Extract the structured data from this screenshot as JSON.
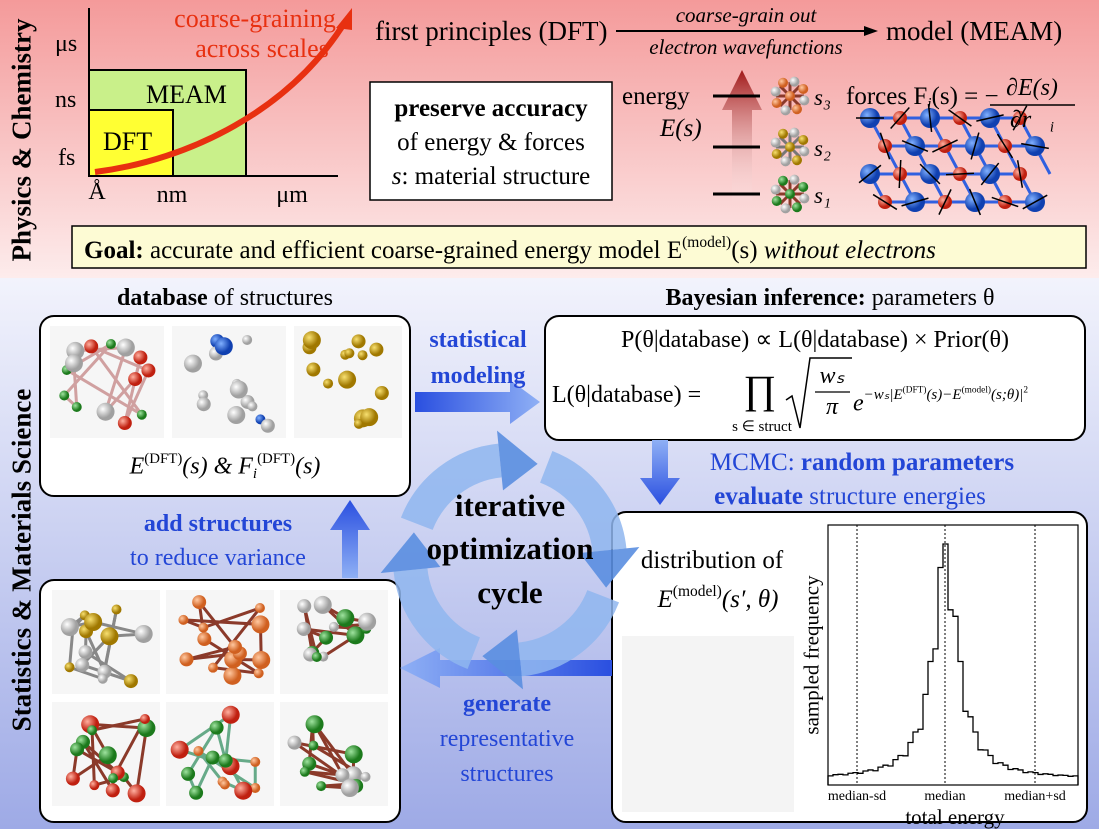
{
  "physics": {
    "side_label": "Physics & Chemistry",
    "scales": {
      "time": [
        "μs",
        "ns",
        "fs"
      ],
      "length": [
        "Å",
        "nm",
        "μm"
      ],
      "dft": "DFT",
      "meam": "MEAM",
      "arrow": [
        "coarse-graining",
        "across scales"
      ]
    },
    "flow": {
      "from": "first principles (DFT)",
      "over": "coarse-grain out",
      "under": "electron wavefunctions",
      "to": "model (MEAM)"
    },
    "accuracy": {
      "bold": "preserve accuracy",
      "line2": "of energy & forces",
      "var": "s",
      "line3": ": material structure"
    },
    "energy": {
      "label": "energy",
      "func": "E(s)",
      "levels": [
        "s₃",
        "s₂",
        "s₁"
      ]
    },
    "forces": {
      "lead": "forces F",
      "sub": "i",
      "rest": "(s) = −",
      "num": "∂E(s)",
      "den": "∂r⃗",
      "den_sub": "i"
    },
    "goal": {
      "bold": "Goal:",
      "text": "accurate and efficient coarse-grained energy model E",
      "sup": "(model)",
      "arg": "(s)",
      "ital": "without electrons"
    }
  },
  "statistics": {
    "side_label": "Statistics & Materials Science",
    "database": {
      "bold": "database",
      "rest": "of structures",
      "caption": [
        "E",
        "(DFT)",
        "(s) & F",
        "i",
        "(DFT)",
        "(s)"
      ]
    },
    "modeling": [
      "statistical",
      "modeling"
    ],
    "bayes": {
      "bold": "Bayesian inference:",
      "rest": "parameters θ",
      "line1": "P(θ|database) ∝ L(θ|database) × Prior(θ)",
      "lhs": "L(θ|database) =",
      "prod": "∏",
      "prod_sub": "s ∈ struct",
      "frac_num": "wₛ",
      "frac_den": "π",
      "exp_base": "e",
      "exponent": [
        "−wₛ|E",
        "(DFT)",
        "(s)−E",
        "(model)",
        "(s;θ)|",
        "2"
      ]
    },
    "mcmc": {
      "lead": "MCMC:",
      "bold1": "random parameters",
      "bold2": "evaluate",
      "rest2": "structure energies"
    },
    "cycle": [
      "iterative",
      "optimization",
      "cycle"
    ],
    "add": {
      "bold": "add structures",
      "rest": "to reduce variance"
    },
    "generate": {
      "bold": "generate",
      "rest": [
        "representative",
        "structures"
      ]
    },
    "distribution": {
      "label": "distribution of",
      "formula": [
        "E",
        "(model)",
        "(s′, θ)"
      ],
      "y_label": "sampled frequency",
      "x_label": "total energy",
      "ticks": [
        "median-sd",
        "median",
        "median+sd"
      ]
    }
  }
}
